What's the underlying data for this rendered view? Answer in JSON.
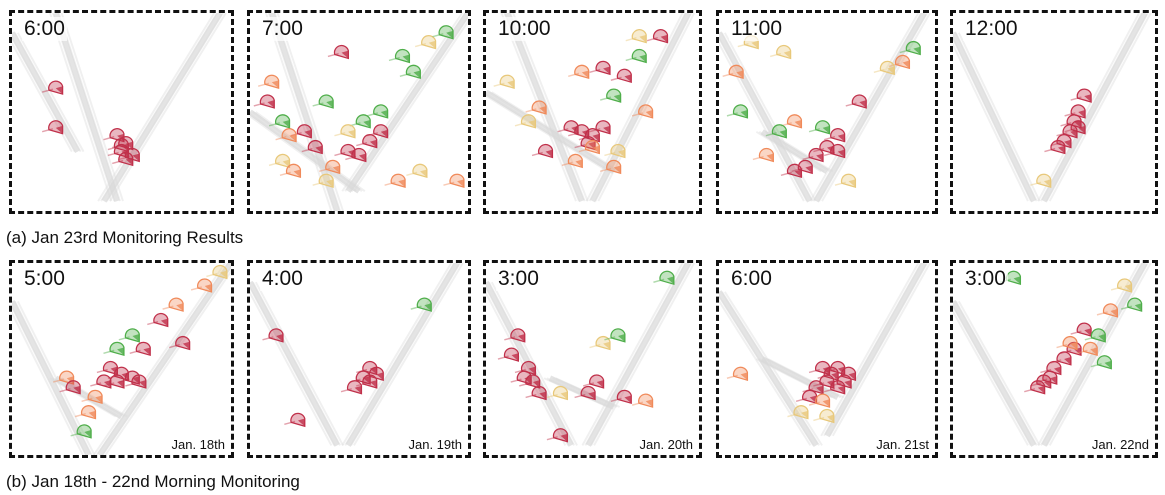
{
  "row_a": {
    "caption": "(a) Jan 23rd Monitoring Results",
    "panels": [
      {
        "time": "6:00",
        "date": ""
      },
      {
        "time": "7:00",
        "date": ""
      },
      {
        "time": "10:00",
        "date": ""
      },
      {
        "time": "11:00",
        "date": ""
      },
      {
        "time": "12:00",
        "date": ""
      }
    ]
  },
  "row_b": {
    "caption": "(b) Jan 18th - 22nd Morning Monitoring",
    "panels": [
      {
        "time": "5:00",
        "date": "Jan. 18th"
      },
      {
        "time": "4:00",
        "date": "Jan. 19th"
      },
      {
        "time": "3:00",
        "date": "Jan. 20th"
      },
      {
        "time": "6:00",
        "date": "Jan. 21st"
      },
      {
        "time": "3:00",
        "date": "Jan. 22nd"
      }
    ]
  },
  "colors": {
    "red": "#c0304a",
    "orange": "#f08a5a",
    "yellow": "#e8c87a",
    "green": "#4fae4a",
    "road": "#d9d9d9"
  }
}
